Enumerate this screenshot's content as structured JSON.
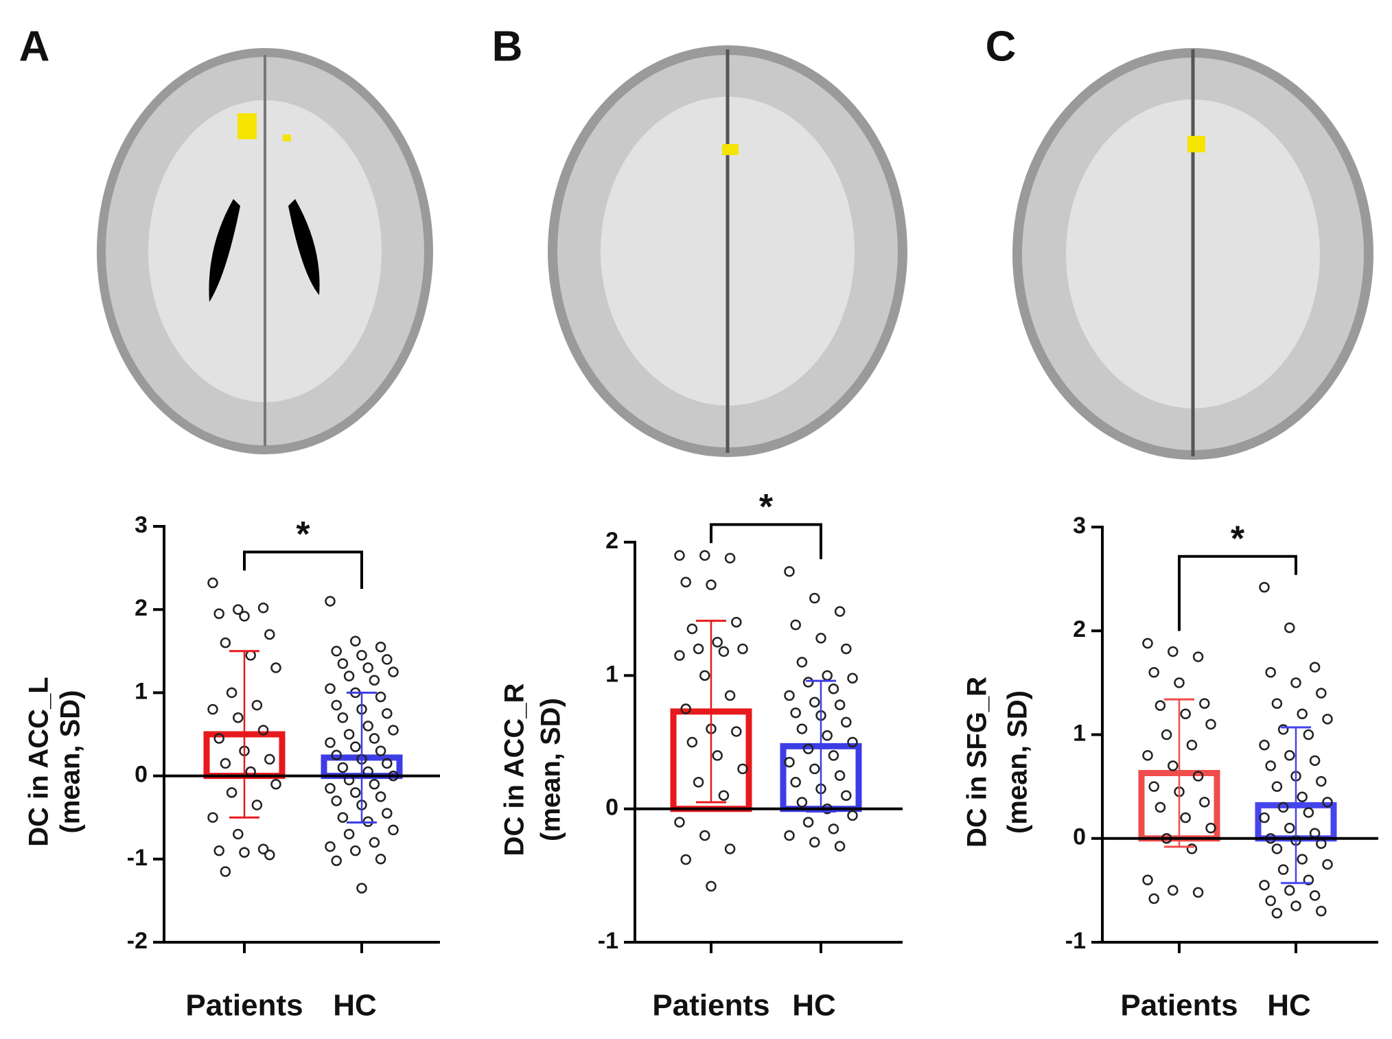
{
  "chart_data": [
    {
      "type": "bar",
      "panel": "A",
      "ylabel": [
        "DC in ACC_L",
        "(mean, SD)"
      ],
      "annotation": "*",
      "categories": [
        "Patients",
        "HC"
      ],
      "values": [
        0.5,
        0.22
      ],
      "errors": [
        1.0,
        0.78
      ],
      "colors": [
        "#e8191c",
        "#3d3de6"
      ],
      "points": [
        [
          2.32,
          2.0,
          2.02,
          1.95,
          1.92,
          1.7,
          1.6,
          1.45,
          1.3,
          1.0,
          0.85,
          0.8,
          0.7,
          0.55,
          0.45,
          0.3,
          0.2,
          0.15,
          0.05,
          -0.1,
          -0.2,
          -0.35,
          -0.5,
          -0.7,
          -0.88,
          -0.9,
          -0.92,
          -0.95,
          -1.15
        ],
        [
          2.1,
          1.62,
          1.55,
          1.5,
          1.45,
          1.4,
          1.35,
          1.3,
          1.25,
          1.2,
          1.15,
          1.05,
          1.0,
          0.95,
          0.85,
          0.8,
          0.75,
          0.7,
          0.6,
          0.55,
          0.5,
          0.45,
          0.4,
          0.35,
          0.3,
          0.25,
          0.2,
          0.15,
          0.1,
          0.05,
          0.0,
          -0.05,
          -0.1,
          -0.15,
          -0.2,
          -0.25,
          -0.3,
          -0.35,
          -0.45,
          -0.5,
          -0.55,
          -0.65,
          -0.7,
          -0.8,
          -0.85,
          -0.9,
          -1.0,
          -1.02,
          -1.35
        ]
      ],
      "ylim": [
        -2,
        3
      ],
      "yticks": [
        -2,
        -1,
        0,
        1,
        2,
        3
      ]
    },
    {
      "type": "bar",
      "panel": "B",
      "ylabel": [
        "DC in ACC_R",
        "(mean, SD)"
      ],
      "annotation": "*",
      "categories": [
        "Patients",
        "HC"
      ],
      "values": [
        0.73,
        0.47
      ],
      "errors": [
        0.68,
        0.49
      ],
      "colors": [
        "#e8191c",
        "#3d3de6"
      ],
      "points": [
        [
          1.9,
          1.9,
          1.88,
          1.7,
          1.68,
          1.4,
          1.35,
          1.25,
          1.2,
          1.2,
          1.18,
          1.15,
          1.0,
          0.85,
          0.75,
          0.6,
          0.58,
          0.5,
          0.4,
          0.3,
          0.2,
          0.1,
          -0.1,
          -0.2,
          -0.3,
          -0.38,
          -0.58
        ],
        [
          1.78,
          1.58,
          1.48,
          1.38,
          1.28,
          1.2,
          1.1,
          1.0,
          0.98,
          0.95,
          0.9,
          0.85,
          0.8,
          0.78,
          0.72,
          0.7,
          0.65,
          0.6,
          0.55,
          0.5,
          0.45,
          0.4,
          0.35,
          0.3,
          0.25,
          0.2,
          0.15,
          0.1,
          0.05,
          0.0,
          -0.05,
          -0.1,
          -0.15,
          -0.2,
          -0.25,
          -0.28
        ]
      ],
      "ylim": [
        -1,
        2
      ],
      "yticks": [
        -1,
        0,
        1,
        2
      ]
    },
    {
      "type": "bar",
      "panel": "C",
      "ylabel": [
        "DC in SFG_R",
        "(mean, SD)"
      ],
      "annotation": "*",
      "categories": [
        "Patients",
        "HC"
      ],
      "values": [
        0.63,
        0.32
      ],
      "errors": [
        0.71,
        0.75
      ],
      "colors": [
        "#ef4c4c",
        "#4545ee"
      ],
      "points": [
        [
          1.88,
          1.8,
          1.75,
          1.6,
          1.5,
          1.3,
          1.28,
          1.2,
          1.1,
          1.0,
          0.9,
          0.8,
          0.7,
          0.6,
          0.5,
          0.45,
          0.35,
          0.3,
          0.2,
          0.1,
          0.0,
          -0.1,
          -0.4,
          -0.5,
          -0.52,
          -0.58
        ],
        [
          2.42,
          2.03,
          1.65,
          1.6,
          1.5,
          1.4,
          1.3,
          1.2,
          1.15,
          1.05,
          1.0,
          0.9,
          0.8,
          0.75,
          0.7,
          0.6,
          0.55,
          0.5,
          0.4,
          0.35,
          0.3,
          0.25,
          0.2,
          0.1,
          0.05,
          0.0,
          -0.02,
          -0.05,
          -0.1,
          -0.2,
          -0.25,
          -0.3,
          -0.4,
          -0.45,
          -0.5,
          -0.55,
          -0.6,
          -0.65,
          -0.7,
          -0.72
        ]
      ],
      "ylim": [
        -1,
        3
      ],
      "yticks": [
        -1,
        0,
        1,
        2,
        3
      ]
    }
  ]
}
